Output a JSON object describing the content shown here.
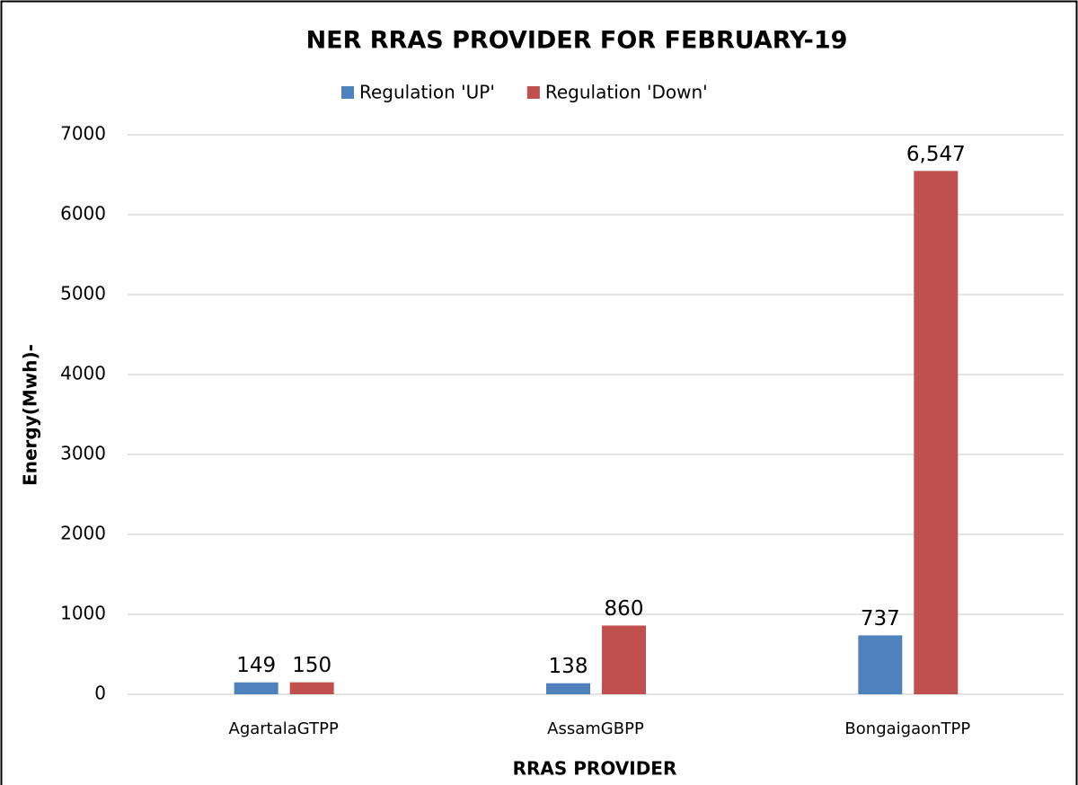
{
  "chart_data": {
    "type": "bar",
    "title": "NER RRAS PROVIDER FOR FEBRUARY-19",
    "x_label": "RRAS PROVIDER",
    "y_label": "Energy(Mwh)-",
    "categories": [
      "AgartalaGTPP",
      "AssamGBPP",
      "BongaigaonTPP"
    ],
    "series": [
      {
        "name": "Regulation 'UP'",
        "color": "#4f81bd",
        "values": [
          149,
          138,
          737
        ]
      },
      {
        "name": "Regulation 'Down'",
        "color": "#c0504d",
        "values": [
          150,
          860,
          6547
        ],
        "value_labels": [
          "150",
          "860",
          "6,547"
        ]
      }
    ],
    "ylim": [
      0,
      7000
    ],
    "yticks": [
      0,
      1000,
      2000,
      3000,
      4000,
      5000,
      6000,
      7000
    ],
    "grid": true,
    "legend": "top"
  }
}
